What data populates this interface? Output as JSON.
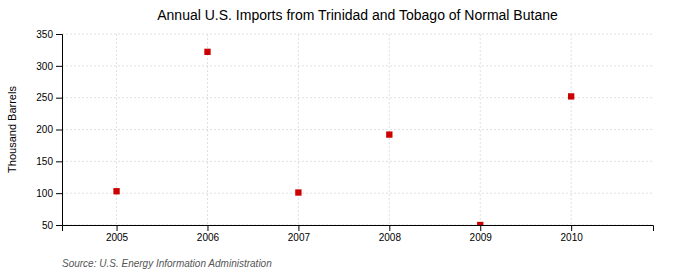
{
  "chart_data": {
    "type": "scatter",
    "title": "Annual U.S. Imports from Trinidad and Tobago of Normal Butane",
    "ylabel": "Thousand Barrels",
    "annotations": [
      "Source: U.S. Energy Information Administration"
    ],
    "x": [
      2005,
      2006,
      2007,
      2008,
      2009,
      2010
    ],
    "values": [
      103,
      322,
      101,
      192,
      50,
      252
    ],
    "color": "#cc0000",
    "marker": "square",
    "xlim": [
      2004.4,
      2010.9
    ],
    "ylim": [
      50,
      350
    ],
    "xticks": [
      2005,
      2006,
      2007,
      2008,
      2009,
      2010
    ],
    "yticks": [
      50,
      100,
      150,
      200,
      250,
      300,
      350
    ],
    "grid": true
  }
}
